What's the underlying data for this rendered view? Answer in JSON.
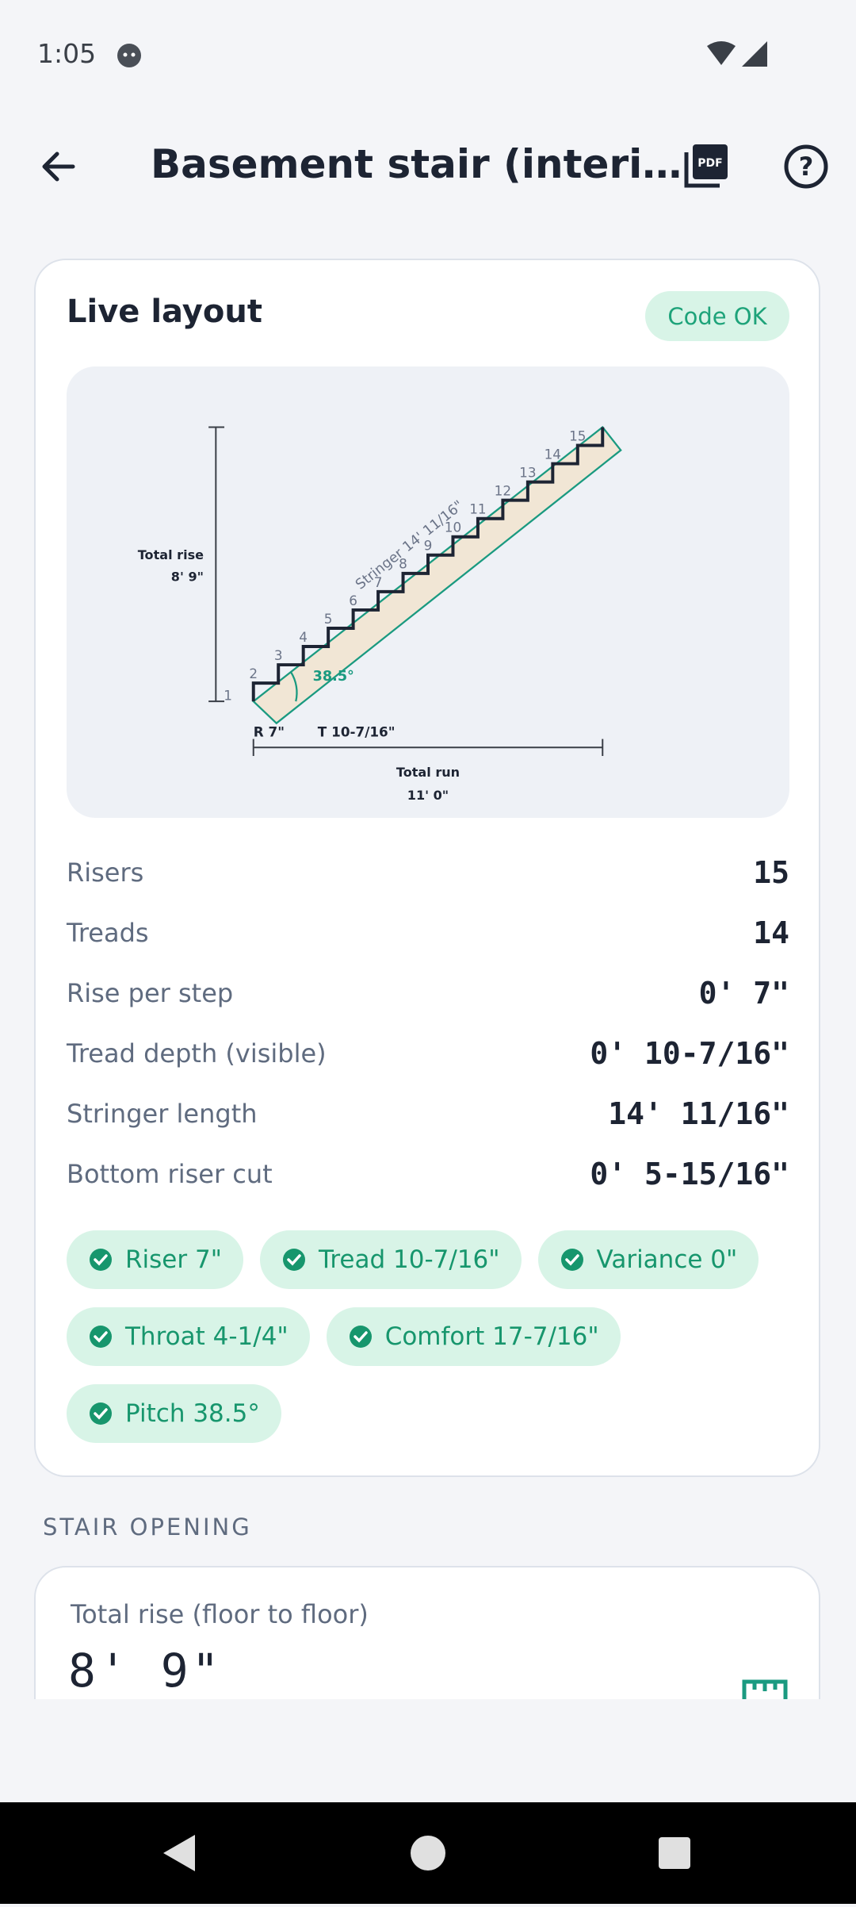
{
  "status_bar": {
    "time": "1:05"
  },
  "header": {
    "title": "Basement stair (interi…"
  },
  "live_layout": {
    "title": "Live layout",
    "badge": "Code OK",
    "diagram": {
      "total_rise_label": "Total rise",
      "total_rise_value": "8' 9\"",
      "step_labels": [
        "1",
        "2",
        "3",
        "4",
        "5",
        "6",
        "7",
        "8",
        "9",
        "10",
        "11",
        "12",
        "13",
        "14",
        "15"
      ],
      "stringer_label": "Stringer 14' 11/16\"",
      "angle": "38.5°",
      "riser": "R 7\"",
      "tread": "T 10-7/16\"",
      "total_run_label": "Total run",
      "total_run_value": "11' 0\""
    },
    "rows": [
      {
        "label": "Risers",
        "value": "15"
      },
      {
        "label": "Treads",
        "value": "14"
      },
      {
        "label": "Rise per step",
        "value": "0' 7\""
      },
      {
        "label": "Tread depth (visible)",
        "value": "0' 10-7/16\""
      },
      {
        "label": "Stringer length",
        "value": "14' 11/16\""
      },
      {
        "label": "Bottom riser cut",
        "value": "0' 5-15/16\""
      }
    ],
    "chips": [
      "Riser 7\"",
      "Tread 10-7/16\"",
      "Variance 0\"",
      "Throat 4-1/4\"",
      "Comfort 17-7/16\"",
      "Pitch 38.5°"
    ]
  },
  "stair_opening": {
    "section_title": "STAIR OPENING",
    "input_label": "Total rise (floor to floor)",
    "input_value": "8' 9\""
  }
}
